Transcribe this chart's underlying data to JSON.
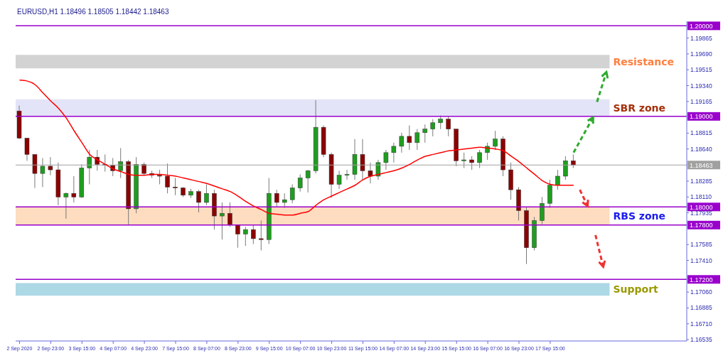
{
  "chart_data": {
    "type": "candlestick",
    "title": "EURUSD,H1 1.18496 1.18505 1.18442 1.18463",
    "categories": [
      "2 Sep 2020",
      null,
      null,
      null,
      "2 Sep 23:00",
      null,
      null,
      null,
      "3 Sep 15:00",
      null,
      null,
      null,
      "4 Sep 07:00",
      null,
      null,
      null,
      "4 Sep 23:00",
      null,
      null,
      null,
      "7 Sep 15:00",
      null,
      null,
      null,
      "8 Sep 07:00",
      null,
      null,
      null,
      "8 Sep 23:00",
      null,
      null,
      null,
      "9 Sep 15:00",
      null,
      null,
      null,
      "10 Sep 07:00",
      null,
      null,
      null,
      "10 Sep 23:00",
      null,
      null,
      null,
      "11 Sep 15:00",
      null,
      null,
      null,
      "14 Sep 07:00",
      null,
      null,
      null,
      "14 Sep 23:00",
      null,
      null,
      null,
      "15 Sep 15:00",
      null,
      null,
      null,
      "16 Sep 07:00",
      null,
      null,
      null,
      "16 Sep 23:00",
      null,
      null,
      null,
      "17 Sep 15:00",
      null,
      null,
      null,
      null,
      null,
      null,
      null,
      null,
      null,
      null,
      null,
      null,
      null,
      null,
      null,
      null,
      null
    ],
    "ohlc": [
      [
        1.1906,
        1.1912,
        1.1875,
        1.1876
      ],
      [
        1.1876,
        1.1876,
        1.1851,
        1.1858
      ],
      [
        1.1858,
        1.1858,
        1.1821,
        1.1837
      ],
      [
        1.1837,
        1.1854,
        1.1822,
        1.1845
      ],
      [
        1.1845,
        1.1855,
        1.1835,
        1.1841
      ],
      [
        1.1841,
        1.1849,
        1.1802,
        1.1811
      ],
      [
        1.1811,
        1.1816,
        1.1787,
        1.1815
      ],
      [
        1.1815,
        1.1834,
        1.1805,
        1.1811
      ],
      [
        1.1811,
        1.1847,
        1.181,
        1.1843
      ],
      [
        1.1843,
        1.1863,
        1.1825,
        1.1855
      ],
      [
        1.1855,
        1.1863,
        1.184,
        1.1847
      ],
      [
        1.1847,
        1.1858,
        1.1839,
        1.1846
      ],
      [
        1.1846,
        1.1854,
        1.1834,
        1.184
      ],
      [
        1.184,
        1.1865,
        1.1832,
        1.185
      ],
      [
        1.185,
        1.1852,
        1.178,
        1.1798
      ],
      [
        1.1798,
        1.1855,
        1.1793,
        1.1847
      ],
      [
        1.1847,
        1.1849,
        1.1835,
        1.1837
      ],
      [
        1.1837,
        1.184,
        1.1832,
        1.1835
      ],
      [
        1.1835,
        1.1841,
        1.1825,
        1.1834
      ],
      [
        1.1834,
        1.1848,
        1.1815,
        1.1822
      ],
      [
        1.1822,
        1.1832,
        1.1813,
        1.1821
      ],
      [
        1.1821,
        1.1822,
        1.1811,
        1.1813
      ],
      [
        1.1813,
        1.182,
        1.181,
        1.1817
      ],
      [
        1.1817,
        1.1819,
        1.1794,
        1.1805
      ],
      [
        1.1805,
        1.1825,
        1.1802,
        1.1815
      ],
      [
        1.1815,
        1.1819,
        1.1775,
        1.179
      ],
      [
        1.179,
        1.1805,
        1.1764,
        1.1793
      ],
      [
        1.1793,
        1.1805,
        1.1778,
        1.178
      ],
      [
        1.178,
        1.178,
        1.1755,
        1.177
      ],
      [
        1.177,
        1.1778,
        1.1757,
        1.1775
      ],
      [
        1.1775,
        1.178,
        1.1759,
        1.1765
      ],
      [
        1.1765,
        1.1785,
        1.1752,
        1.1764
      ],
      [
        1.1764,
        1.1832,
        1.1759,
        1.1815
      ],
      [
        1.1815,
        1.1819,
        1.18,
        1.1805
      ],
      [
        1.1805,
        1.1815,
        1.1799,
        1.1808
      ],
      [
        1.1808,
        1.1825,
        1.1804,
        1.1821
      ],
      [
        1.1821,
        1.1836,
        1.1817,
        1.1832
      ],
      [
        1.1832,
        1.1841,
        1.1816,
        1.184
      ],
      [
        1.184,
        1.1918,
        1.1837,
        1.1888
      ],
      [
        1.1888,
        1.189,
        1.1855,
        1.1858
      ],
      [
        1.1858,
        1.186,
        1.181,
        1.1825
      ],
      [
        1.1825,
        1.184,
        1.182,
        1.1835
      ],
      [
        1.1835,
        1.1841,
        1.183,
        1.1836
      ],
      [
        1.1836,
        1.1875,
        1.183,
        1.1858
      ],
      [
        1.1858,
        1.1875,
        1.183,
        1.184
      ],
      [
        1.184,
        1.1849,
        1.1826,
        1.1834
      ],
      [
        1.1834,
        1.1852,
        1.183,
        1.1849
      ],
      [
        1.1849,
        1.1863,
        1.1841,
        1.186
      ],
      [
        1.186,
        1.1871,
        1.1849,
        1.1867
      ],
      [
        1.1867,
        1.1882,
        1.186,
        1.1878
      ],
      [
        1.1878,
        1.189,
        1.1863,
        1.1871
      ],
      [
        1.1871,
        1.1886,
        1.1863,
        1.1882
      ],
      [
        1.1882,
        1.1891,
        1.1871,
        1.1886
      ],
      [
        1.1886,
        1.1897,
        1.1878,
        1.1893
      ],
      [
        1.1893,
        1.1901,
        1.1886,
        1.1897
      ],
      [
        1.1897,
        1.19,
        1.1878,
        1.1886
      ],
      [
        1.1886,
        1.1886,
        1.1845,
        1.1851
      ],
      [
        1.1851,
        1.186,
        1.1843,
        1.1852
      ],
      [
        1.1852,
        1.1856,
        1.1841,
        1.1849
      ],
      [
        1.1849,
        1.1863,
        1.1843,
        1.186
      ],
      [
        1.186,
        1.1871,
        1.1852,
        1.1867
      ],
      [
        1.1867,
        1.1884,
        1.1863,
        1.1875
      ],
      [
        1.1875,
        1.1878,
        1.1834,
        1.1841
      ],
      [
        1.1841,
        1.1849,
        1.1808,
        1.1819
      ],
      [
        1.1819,
        1.1822,
        1.1785,
        1.1796
      ],
      [
        1.1796,
        1.18,
        1.1737,
        1.1755
      ],
      [
        1.1755,
        1.1789,
        1.1752,
        1.1785
      ],
      [
        1.1785,
        1.1811,
        1.1781,
        1.1804
      ],
      [
        1.1804,
        1.183,
        1.1799,
        1.1824
      ],
      [
        1.1824,
        1.1841,
        1.1819,
        1.1834
      ],
      [
        1.1834,
        1.1856,
        1.183,
        1.1851
      ],
      [
        1.1851,
        1.1858,
        1.1843,
        1.18463
      ],
      null,
      null,
      null,
      null,
      null,
      null,
      null,
      null,
      null,
      null,
      null,
      null,
      null,
      null
    ],
    "colors": [
      "#8b0000",
      "#8b0000",
      "#8b0000",
      "#1e9e1e",
      "#8b0000",
      "#8b0000",
      "#1e9e1e",
      "#8b0000",
      "#1e9e1e",
      "#1e9e1e",
      "#8b0000",
      "#8b0000",
      "#8b0000",
      "#1e9e1e",
      "#8b0000",
      "#1e9e1e",
      "#8b0000",
      "#8b0000",
      "#8b0000",
      "#8b0000",
      "#8b0000",
      "#8b0000",
      "#1e9e1e",
      "#8b0000",
      "#1e9e1e",
      "#8b0000",
      "#1e9e1e",
      "#8b0000",
      "#8b0000",
      "#1e9e1e",
      "#8b0000",
      "#8b0000",
      "#1e9e1e",
      "#8b0000",
      "#1e9e1e",
      "#1e9e1e",
      "#1e9e1e",
      "#1e9e1e",
      "#1e9e1e",
      "#8b0000",
      "#8b0000",
      "#1e9e1e",
      "#1e9e1e",
      "#1e9e1e",
      "#8b0000",
      "#8b0000",
      "#1e9e1e",
      "#1e9e1e",
      "#1e9e1e",
      "#1e9e1e",
      "#8b0000",
      "#1e9e1e",
      "#1e9e1e",
      "#1e9e1e",
      "#1e9e1e",
      "#8b0000",
      "#8b0000",
      "#1e9e1e",
      "#8b0000",
      "#1e9e1e",
      "#1e9e1e",
      "#1e9e1e",
      "#8b0000",
      "#8b0000",
      "#8b0000",
      "#8b0000",
      "#1e9e1e",
      "#1e9e1e",
      "#1e9e1e",
      "#1e9e1e",
      "#1e9e1e",
      "#8b0000",
      null,
      null,
      null,
      null,
      null,
      null,
      null,
      null,
      null,
      null,
      null,
      null,
      null,
      null
    ],
    "series": [
      {
        "type": "line",
        "color": "#ff0000",
        "values": [
          1.194,
          1.1939,
          1.1935,
          1.1926,
          1.1917,
          1.1909,
          1.1898,
          1.1884,
          1.1871,
          1.1858,
          1.1852,
          1.1847,
          1.1842,
          1.1839,
          1.1836,
          1.1835,
          1.1835,
          1.1836,
          1.1836,
          1.1835,
          1.1834,
          1.1832,
          1.183,
          1.1828,
          1.1826,
          1.1823,
          1.182,
          1.1817,
          1.1812,
          1.1806,
          1.1801,
          1.1797,
          1.1793,
          1.1792,
          1.1791,
          1.1791,
          1.1793,
          1.1795,
          1.1802,
          1.1808,
          1.1812,
          1.1816,
          1.182,
          1.1824,
          1.183,
          1.1834,
          1.1836,
          1.1838,
          1.184,
          1.1843,
          1.1847,
          1.1852,
          1.1856,
          1.1858,
          1.186,
          1.1862,
          1.1863,
          1.1864,
          1.1865,
          1.1866,
          1.1865,
          1.1864,
          1.1862,
          1.1856,
          1.185,
          1.1843,
          1.1836,
          1.1829,
          1.1825,
          1.1824,
          1.1824,
          1.1824,
          null,
          null,
          null,
          null,
          null,
          null,
          null,
          null,
          null,
          null,
          null,
          null,
          null,
          null
        ]
      }
    ],
    "ylim": [
      1.1652,
      1.2005
    ],
    "yticks": [
      {
        "value": 1.19865,
        "label": "1.19865"
      },
      {
        "value": 1.1969,
        "label": "1.19690"
      },
      {
        "value": 1.19515,
        "label": "1.19515"
      },
      {
        "value": 1.1934,
        "label": "1.19340"
      },
      {
        "value": 1.19165,
        "label": "1.19165"
      },
      {
        "value": 1.18815,
        "label": "1.18815"
      },
      {
        "value": 1.1864,
        "label": "1.18640"
      },
      {
        "value": 1.18285,
        "label": "1.18285"
      },
      {
        "value": 1.1811,
        "label": "1.18110"
      },
      {
        "value": 1.17935,
        "label": "1.17935"
      },
      {
        "value": 1.17585,
        "label": "1.17585"
      },
      {
        "value": 1.1741,
        "label": "1.17410"
      },
      {
        "value": 1.1706,
        "label": "1.17060"
      },
      {
        "value": 1.16885,
        "label": "1.16885"
      },
      {
        "value": 1.1671,
        "label": "1.16710"
      },
      {
        "value": 1.16535,
        "label": "1.16535"
      }
    ],
    "ref_lines": [
      {
        "axis": "y",
        "value": 1.2,
        "label": "1.20000",
        "color": "#9900cc"
      },
      {
        "axis": "y",
        "value": 1.19,
        "label": "1.19000",
        "color": "#9900cc"
      },
      {
        "axis": "y",
        "value": 1.18463,
        "label": "1.18463",
        "color": "#a0a0a0"
      },
      {
        "axis": "y",
        "value": 1.18,
        "label": "1.18000",
        "color": "#9900cc"
      },
      {
        "axis": "y",
        "value": 1.178,
        "label": "1.17800",
        "color": "#9900cc"
      },
      {
        "axis": "y",
        "value": 1.172,
        "label": "1.17200",
        "color": "#9900cc"
      }
    ],
    "bands": [
      {
        "axis": "y",
        "from": 1.1953,
        "to": 1.1968,
        "label": "Resistance",
        "color": "#d3d3d3"
      },
      {
        "axis": "y",
        "from": 1.19,
        "to": 1.1919,
        "label": "SBR zone",
        "color": "#e4e4f8"
      },
      {
        "axis": "y",
        "from": 1.178,
        "to": 1.18,
        "label": "RBS zone",
        "color": "#fddcbf"
      },
      {
        "axis": "y",
        "from": 1.1702,
        "to": 1.1716,
        "label": "Support",
        "color": "#add8e6"
      }
    ]
  }
}
